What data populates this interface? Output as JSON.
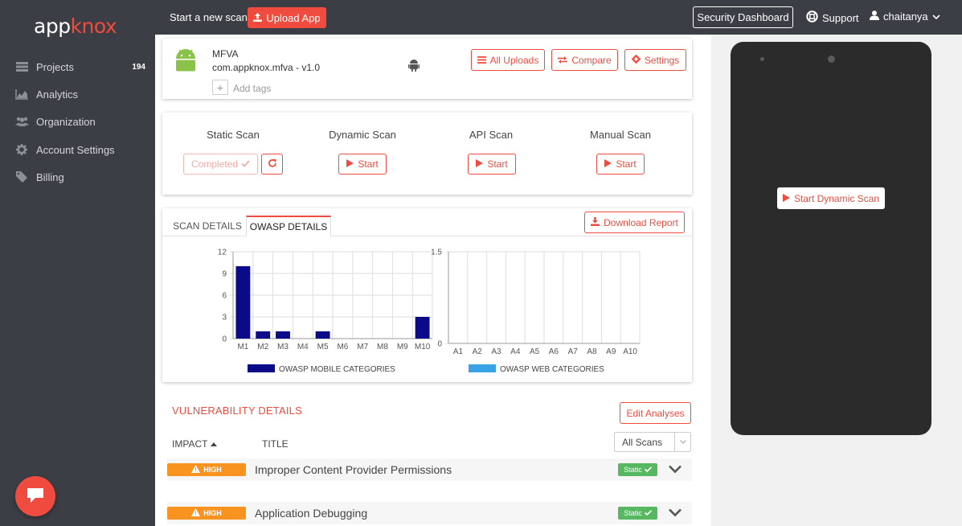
{
  "brand": {
    "logo_app": "app",
    "logo_knox": "knox"
  },
  "sidebar": {
    "items": [
      {
        "label": "Projects",
        "count": "194"
      },
      {
        "label": "Analytics"
      },
      {
        "label": "Organization"
      },
      {
        "label": "Account Settings"
      },
      {
        "label": "Billing"
      }
    ]
  },
  "topbar": {
    "start_label": "Start a new scan",
    "upload_label": "Upload App",
    "security_dashboard": "Security Dashboard",
    "support": "Support",
    "user": "chaitanya"
  },
  "app": {
    "name": "MFVA",
    "package": "com.appknox.mfva - v1.0",
    "add_tags": "Add tags",
    "buttons": {
      "uploads": "All Uploads",
      "compare": "Compare",
      "settings": "Settings"
    }
  },
  "scans": {
    "static": {
      "title": "Static Scan",
      "status": "Completed"
    },
    "dynamic": {
      "title": "Dynamic Scan",
      "action": "Start"
    },
    "api": {
      "title": "API Scan",
      "action": "Start"
    },
    "manual": {
      "title": "Manual Scan",
      "action": "Start"
    }
  },
  "tabs": {
    "scan_details": "SCAN DETAILS",
    "owasp_details": "OWASP DETAILS",
    "download": "Download Report"
  },
  "chart_data": [
    {
      "type": "bar",
      "categories": [
        "M1",
        "M2",
        "M3",
        "M4",
        "M5",
        "M6",
        "M7",
        "M8",
        "M9",
        "M10"
      ],
      "values": [
        10,
        1,
        1,
        0,
        1,
        0,
        0,
        0,
        0,
        3
      ],
      "ylim": [
        0,
        12
      ],
      "yticks": [
        "0",
        "3",
        "6",
        "9",
        "12"
      ],
      "legend": "OWASP MOBILE CATEGORIES",
      "color": "#0b0b8a",
      "grid": true
    },
    {
      "type": "bar",
      "categories": [
        "A1",
        "A2",
        "A3",
        "A4",
        "A5",
        "A6",
        "A7",
        "A8",
        "A9",
        "A10"
      ],
      "values": [
        0,
        0,
        0,
        0,
        0,
        0,
        0,
        0,
        0,
        0
      ],
      "ylim": [
        0,
        1.5
      ],
      "yticks": [
        "0",
        "1.5"
      ],
      "legend": "OWASP WEB CATEGORIES",
      "color": "#3aa3e8",
      "grid": true
    }
  ],
  "vulnerabilities": {
    "title": "VULNERABILITY DETAILS",
    "edit_label": "Edit Analyses",
    "col_impact": "IMPACT",
    "col_title": "TITLE",
    "filter": "All Scans",
    "rows": [
      {
        "impact": "HIGH",
        "name": "Improper Content Provider Permissions",
        "tag": "Static"
      },
      {
        "impact": "HIGH",
        "name": "Application Debugging",
        "tag": "Static"
      }
    ]
  },
  "device": {
    "start_dynamic": "Start Dynamic Scan"
  },
  "colors": {
    "accent": "#ef4b3f",
    "sidebar": "#3b3e45",
    "high": "#f7931e",
    "static": "#58b862"
  }
}
